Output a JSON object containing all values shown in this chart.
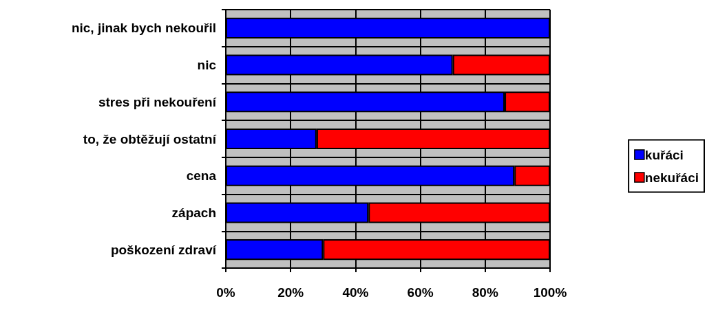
{
  "chart_data": {
    "type": "bar",
    "orientation": "horizontal",
    "stacked": true,
    "categories": [
      "nic, jinak bych nekouřil",
      "nic",
      "stres při nekouření",
      "to, že obtěžují ostatní",
      "cena",
      "zápach",
      "poškození zdraví"
    ],
    "series": [
      {
        "name": "kuřáci",
        "color": "#0000ff",
        "values": [
          100,
          70,
          86,
          28,
          89,
          44,
          30
        ]
      },
      {
        "name": "nekuřáci",
        "color": "#ff0000",
        "values": [
          null,
          30,
          14,
          72,
          11,
          56,
          70
        ]
      }
    ],
    "xlim": [
      0,
      100
    ],
    "xticks": [
      {
        "value": 0,
        "label": "0%"
      },
      {
        "value": 20,
        "label": "20%"
      },
      {
        "value": 40,
        "label": "40%"
      },
      {
        "value": 60,
        "label": "60%"
      },
      {
        "value": 80,
        "label": "80%"
      },
      {
        "value": 100,
        "label": "100%"
      }
    ],
    "grid": true,
    "legend": "right"
  }
}
